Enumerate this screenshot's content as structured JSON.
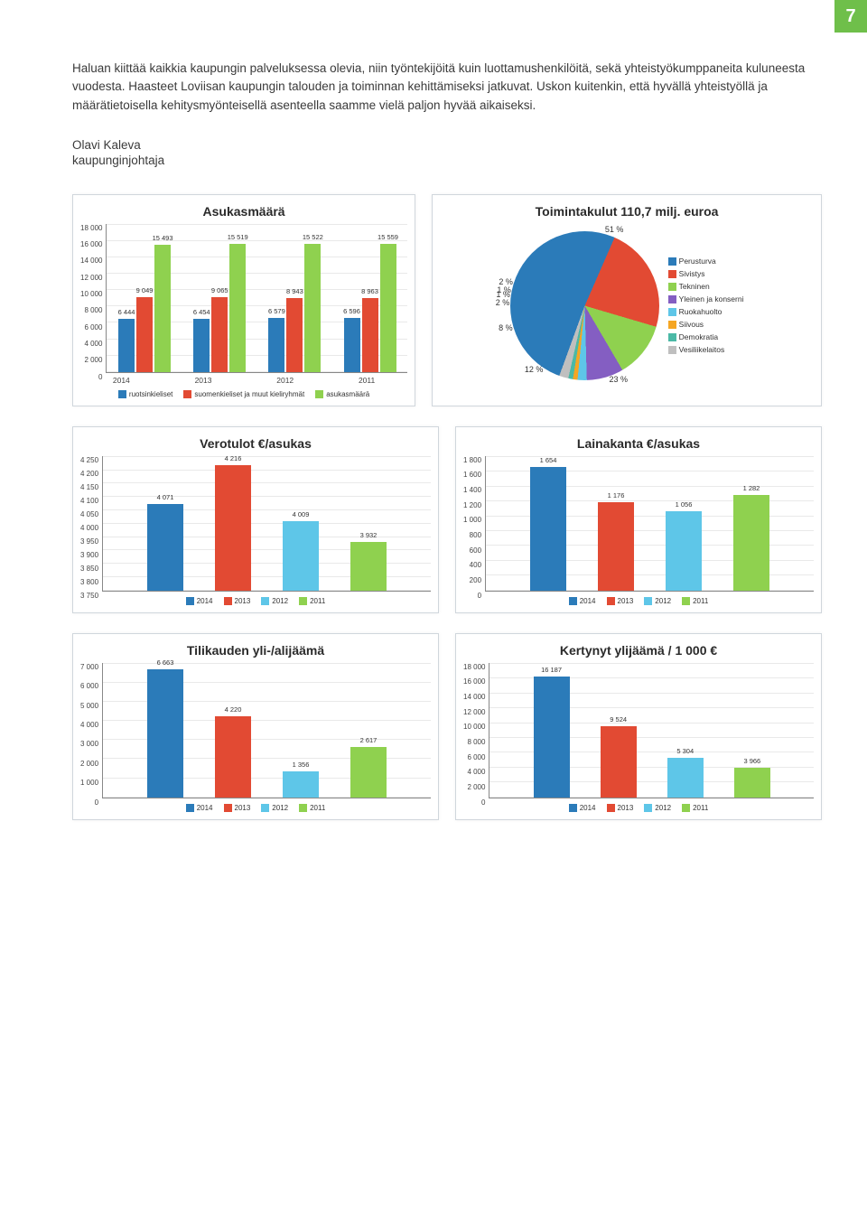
{
  "page_number": "7",
  "intro_text": "Haluan kiittää kaikkia kaupungin palveluksessa olevia, niin työntekijöitä kuin luottamushenkilöitä, sekä yhteistyökumppaneita kuluneesta vuodesta. Haasteet Loviisan kaupungin talouden ja toiminnan kehittämiseksi jatkuvat. Uskon kuitenkin, että hyvällä yhteistyöllä ja määrätietoisella kehitysmyönteisellä asenteella saamme vielä paljon hyvää aikaiseksi.",
  "signature_name": "Olavi Kaleva",
  "signature_title": "kaupunginjohtaja",
  "colors": {
    "blue": "#2b7bb9",
    "red": "#e24a33",
    "lblue": "#5ec6e8",
    "green": "#8fd14f",
    "orange": "#f5a623",
    "teal": "#4bb9a6",
    "grey": "#bfbfbf",
    "dblue": "#1f4e79",
    "grid": "#e9e9e9",
    "bg": "#ffffff",
    "border": "#d0d6dc"
  },
  "asukas": {
    "type": "grouped-bar",
    "title": "Asukasmäärä",
    "ylim": [
      0,
      18000
    ],
    "ytick_step": 2000,
    "yticks": [
      "0",
      "2 000",
      "4 000",
      "6 000",
      "8 000",
      "10 000",
      "12 000",
      "14 000",
      "16 000",
      "18 000"
    ],
    "categories": [
      "2014",
      "2013",
      "2012",
      "2011"
    ],
    "series": [
      {
        "name": "ruotsinkieliset",
        "color": "#2b7bb9",
        "values": [
          6444,
          6454,
          6579,
          6596
        ],
        "labels": [
          "6 444",
          "6 454",
          "6 579",
          "6 596"
        ]
      },
      {
        "name": "suomenkieliset ja muut kieliryhmät",
        "color": "#e24a33",
        "values": [
          9049,
          9065,
          8943,
          8963
        ],
        "labels": [
          "9 049",
          "9 065",
          "8 943",
          "8 963"
        ]
      },
      {
        "name": "asukasmäärä",
        "color": "#8fd14f",
        "values": [
          15493,
          15519,
          15522,
          15559
        ],
        "labels": [
          "15 493",
          "15 519",
          "15 522",
          "15 559"
        ]
      }
    ]
  },
  "pie": {
    "type": "pie",
    "title": "Toimintakulut 110,7 milj. euroa",
    "background": "#ffffff",
    "slices": [
      {
        "name": "Perusturva",
        "color": "#2b7bb9",
        "pct": 51,
        "label": "51 %"
      },
      {
        "name": "Sivistys",
        "color": "#e24a33",
        "pct": 23,
        "label": "23 %"
      },
      {
        "name": "Tekninen",
        "color": "#8fd14f",
        "pct": 12,
        "label": "12 %"
      },
      {
        "name": "Yleinen ja konserni",
        "color": "#845ec2",
        "pct": 8,
        "label": "8 %"
      },
      {
        "name": "Ruokahuolto",
        "color": "#5ec6e8",
        "pct": 2,
        "label": "2 %"
      },
      {
        "name": "Siivous",
        "color": "#f5a623",
        "pct": 1,
        "label": "1 %"
      },
      {
        "name": "Demokratia",
        "color": "#4bb9a6",
        "pct": 1,
        "label": "1 %"
      },
      {
        "name": "Vesiliikelaitos",
        "color": "#bfbfbf",
        "pct": 2,
        "label": "2 %"
      }
    ]
  },
  "verotulot": {
    "type": "bar",
    "title": "Verotulot €/asukas",
    "ylim": [
      3750,
      4250
    ],
    "ytick_step": 50,
    "yticks": [
      "3 750",
      "3 800",
      "3 850",
      "3 900",
      "3 950",
      "4 000",
      "4 050",
      "4 100",
      "4 150",
      "4 200",
      "4 250"
    ],
    "series": [
      {
        "year": "2014",
        "color": "#2b7bb9",
        "value": 4071,
        "label": "4 071"
      },
      {
        "year": "2013",
        "color": "#e24a33",
        "value": 4216,
        "label": "4 216"
      },
      {
        "year": "2012",
        "color": "#5ec6e8",
        "value": 4009,
        "label": "4 009"
      },
      {
        "year": "2011",
        "color": "#8fd14f",
        "value": 3932,
        "label": "3 932"
      }
    ]
  },
  "lainakanta": {
    "type": "bar",
    "title": "Lainakanta €/asukas",
    "ylim": [
      0,
      1800
    ],
    "ytick_step": 200,
    "yticks": [
      "0",
      "200",
      "400",
      "600",
      "800",
      "1 000",
      "1 200",
      "1 400",
      "1 600",
      "1 800"
    ],
    "series": [
      {
        "year": "2014",
        "color": "#2b7bb9",
        "value": 1654,
        "label": "1 654"
      },
      {
        "year": "2013",
        "color": "#e24a33",
        "value": 1176,
        "label": "1 176"
      },
      {
        "year": "2012",
        "color": "#5ec6e8",
        "value": 1056,
        "label": "1 056"
      },
      {
        "year": "2011",
        "color": "#8fd14f",
        "value": 1282,
        "label": "1 282"
      }
    ]
  },
  "tilikausi": {
    "type": "bar",
    "title": "Tilikauden yli-/alijäämä",
    "ylim": [
      0,
      7000
    ],
    "ytick_step": 1000,
    "yticks": [
      "0",
      "1 000",
      "2 000",
      "3 000",
      "4 000",
      "5 000",
      "6 000",
      "7 000"
    ],
    "series": [
      {
        "year": "2014",
        "color": "#2b7bb9",
        "value": 6663,
        "label": "6 663"
      },
      {
        "year": "2013",
        "color": "#e24a33",
        "value": 4220,
        "label": "4 220"
      },
      {
        "year": "2012",
        "color": "#5ec6e8",
        "value": 1356,
        "label": "1 356"
      },
      {
        "year": "2011",
        "color": "#8fd14f",
        "value": 2617,
        "label": "2 617"
      }
    ]
  },
  "kertynyt": {
    "type": "bar",
    "title": "Kertynyt ylijäämä / 1 000 €",
    "ylim": [
      0,
      18000
    ],
    "ytick_step": 2000,
    "yticks": [
      "0",
      "2 000",
      "4 000",
      "6 000",
      "8 000",
      "10 000",
      "12 000",
      "14 000",
      "16 000",
      "18 000"
    ],
    "series": [
      {
        "year": "2014",
        "color": "#2b7bb9",
        "value": 16187,
        "label": "16 187"
      },
      {
        "year": "2013",
        "color": "#e24a33",
        "value": 9524,
        "label": "9 524"
      },
      {
        "year": "2012",
        "color": "#5ec6e8",
        "value": 5304,
        "label": "5 304"
      },
      {
        "year": "2011",
        "color": "#8fd14f",
        "value": 3966,
        "label": "3 966"
      }
    ]
  },
  "year_legend": [
    "2014",
    "2013",
    "2012",
    "2011"
  ],
  "year_colors": [
    "#2b7bb9",
    "#e24a33",
    "#5ec6e8",
    "#8fd14f"
  ]
}
